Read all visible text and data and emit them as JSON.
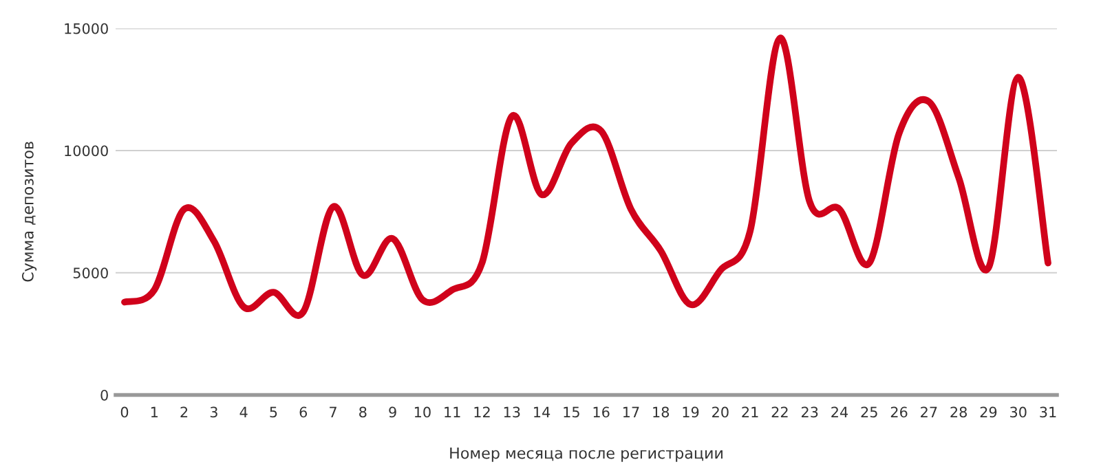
{
  "chart_data": {
    "type": "line",
    "xlabel": "Номер месяца после регистрации",
    "ylabel": "Сумма депозитов",
    "categories": [
      "0",
      "1",
      "2",
      "3",
      "4",
      "5",
      "6",
      "7",
      "8",
      "9",
      "10",
      "11",
      "12",
      "13",
      "14",
      "15",
      "16",
      "17",
      "18",
      "19",
      "20",
      "21",
      "22",
      "23",
      "24",
      "25",
      "26",
      "27",
      "28",
      "29",
      "30",
      "31"
    ],
    "series": [
      {
        "color": "#d0021b",
        "values": [
          3800,
          4300,
          7600,
          6300,
          3600,
          4200,
          3400,
          7700,
          4900,
          6400,
          3900,
          4300,
          5400,
          11400,
          8200,
          10300,
          10800,
          7600,
          5900,
          3700,
          5100,
          6700,
          14600,
          7900,
          7600,
          5400,
          10700,
          12000,
          8900,
          5200,
          13000,
          5400
        ]
      }
    ],
    "ylim": [
      0,
      15000
    ],
    "yticks": [
      0,
      5000,
      10000,
      15000
    ],
    "grid": "y",
    "marker": "none",
    "line_style": "solid"
  }
}
